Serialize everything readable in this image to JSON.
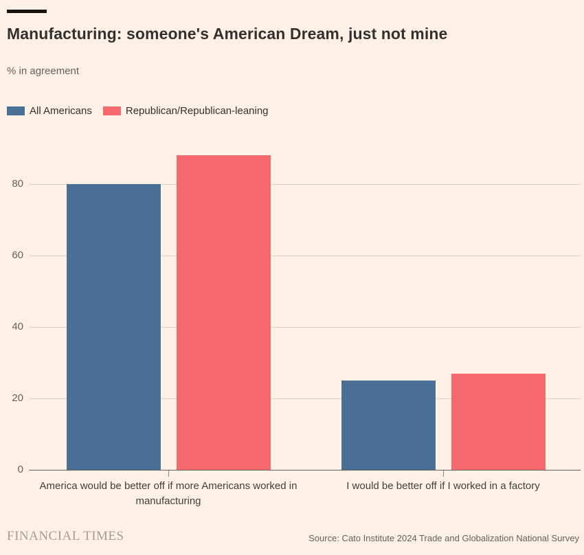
{
  "header": {
    "title": "Manufacturing: someone's American Dream, just not mine",
    "subtitle": "% in agreement"
  },
  "legend": [
    {
      "label": "All Americans",
      "color": "#4A7098"
    },
    {
      "label": "Republican/Republican-leaning",
      "color": "#F5686D"
    }
  ],
  "chart_data": {
    "type": "bar",
    "categories": [
      "America would be better off if more Americans worked in manufacturing",
      "I would be better off if I worked in a factory"
    ],
    "series": [
      {
        "name": "All Americans",
        "color": "#4A7098",
        "values": [
          80,
          25
        ]
      },
      {
        "name": "Republican/Republican-leaning",
        "color": "#F5686D",
        "values": [
          88,
          27
        ]
      }
    ],
    "title": "Manufacturing: someone's American Dream, just not mine",
    "ylabel": "% in agreement",
    "yticks": [
      0,
      20,
      40,
      60,
      80
    ],
    "ylim": [
      0,
      90
    ],
    "grid": true,
    "legend_position": "top-left"
  },
  "footer": {
    "brand": "FINANCIAL TIMES",
    "source": "Source: Cato Institute 2024 Trade and Globalization National Survey"
  },
  "colors": {
    "background": "#FFF1E5",
    "text_dark": "#33302E",
    "text_muted": "#66605C",
    "gridline": "#DCCFC3",
    "axis_line": "#66605C",
    "blue": "#4A7098",
    "red": "#F5686D"
  }
}
